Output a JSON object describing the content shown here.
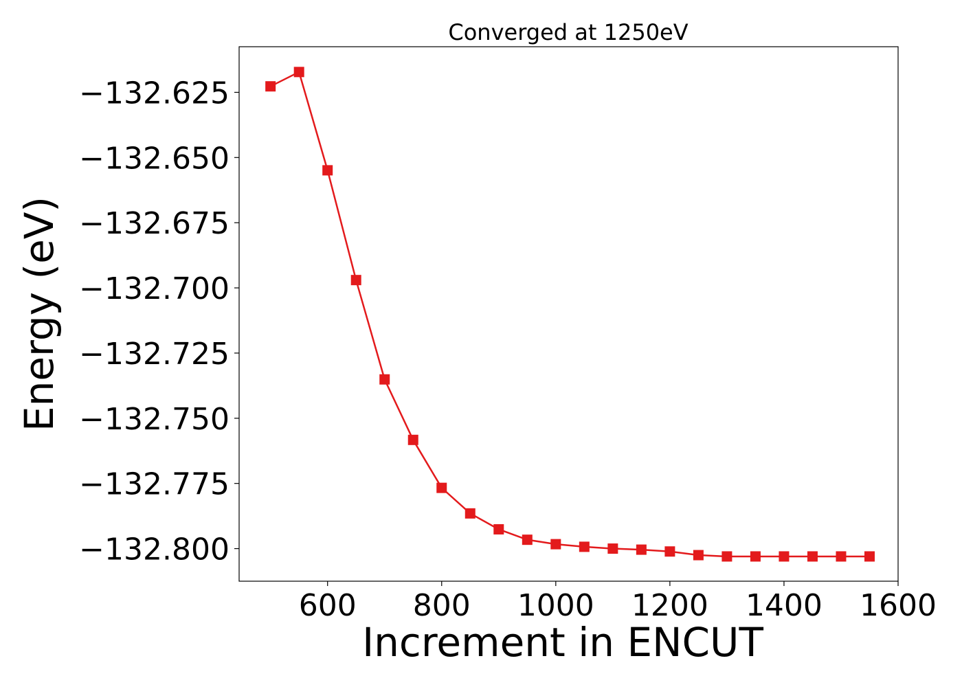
{
  "chart_data": {
    "type": "line",
    "title": "Converged at 1250eV",
    "xlabel": "Increment in ENCUT",
    "ylabel": "Energy (eV)",
    "xlim": [
      445,
      1600
    ],
    "ylim": [
      -132.8125,
      -132.6075
    ],
    "xticks": [
      600,
      800,
      1000,
      1200,
      1400,
      1600
    ],
    "xtick_labels": [
      "600",
      "800",
      "1000",
      "1200",
      "1400",
      "1600"
    ],
    "yticks": [
      -132.625,
      -132.65,
      -132.675,
      -132.7,
      -132.725,
      -132.75,
      -132.775,
      -132.8
    ],
    "ytick_labels": [
      "−132.625",
      "−132.650",
      "−132.675",
      "−132.700",
      "−132.725",
      "−132.750",
      "−132.775",
      "−132.800"
    ],
    "grid": false,
    "series": [
      {
        "color": "#e31a1c",
        "marker": "square",
        "x": [
          500,
          550,
          600,
          650,
          700,
          750,
          800,
          850,
          900,
          950,
          1000,
          1050,
          1100,
          1150,
          1200,
          1250,
          1300,
          1350,
          1400,
          1450,
          1500,
          1550
        ],
        "y": [
          -132.6227,
          -132.6172,
          -132.6549,
          -132.697,
          -132.7351,
          -132.7583,
          -132.7767,
          -132.7865,
          -132.7926,
          -132.7966,
          -132.7983,
          -132.7993,
          -132.8,
          -132.8004,
          -132.8011,
          -132.8025,
          -132.803,
          -132.803,
          -132.803,
          -132.803,
          -132.803,
          -132.803
        ]
      }
    ]
  }
}
